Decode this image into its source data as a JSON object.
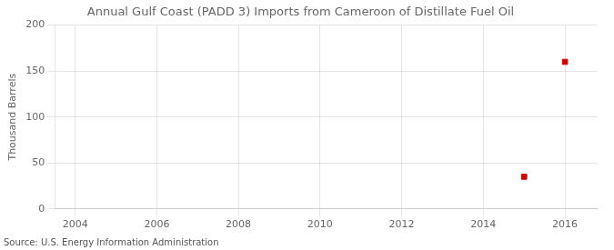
{
  "chart_data": {
    "type": "scatter",
    "title": "Annual Gulf Coast (PADD 3) Imports from Cameroon of Distillate Fuel Oil",
    "y_label": "Thousand Barrels",
    "annotations": [
      "Source: U.S. Energy Information Administration"
    ],
    "x": [
      2015,
      2016
    ],
    "values": [
      35,
      160
    ],
    "color": "#cc0000",
    "marker": "square",
    "xlim": [
      2003.5,
      2016.8
    ],
    "xticks": [
      2004,
      2006,
      2008,
      2010,
      2012,
      2014,
      2016
    ],
    "ylim": [
      0,
      200
    ],
    "yticks": [
      0,
      50,
      100,
      150,
      200
    ],
    "grid": true
  }
}
